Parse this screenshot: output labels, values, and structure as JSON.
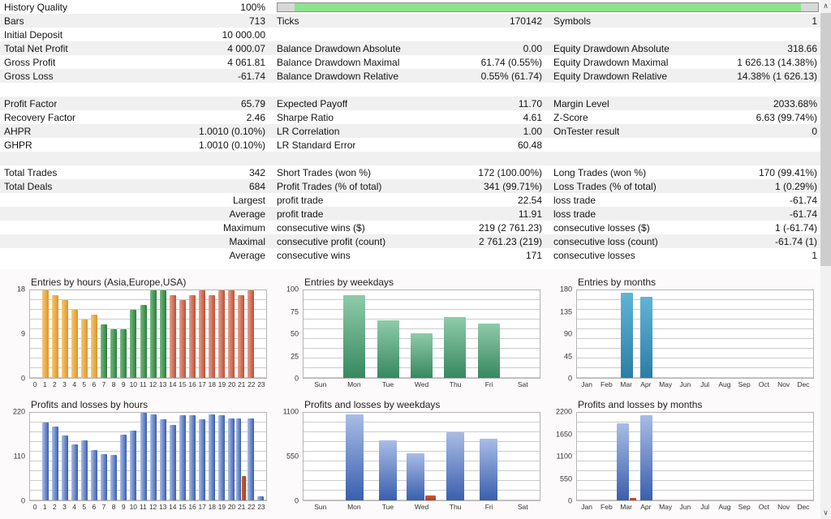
{
  "colors": {
    "stripe": "#f0f0f1",
    "progress_green": "#8de28d",
    "progress_gray": "#d8d8d8",
    "palette": {
      "asia": [
        "#f7c873",
        "#dd9429"
      ],
      "europe": [
        "#74b97e",
        "#2d7f3f"
      ],
      "usa": [
        "#e59d8a",
        "#bd5038"
      ],
      "entries_weekday": [
        "#8fcbaa",
        "#37885f"
      ],
      "entries_month": [
        "#62b4d6",
        "#2a7da6"
      ],
      "profit": [
        "#a9bce6",
        "#3a5fae"
      ],
      "loss": [
        "#cd5a36",
        "#b23b1e"
      ]
    }
  },
  "scrollbar": {
    "up": "∧",
    "down": "∨"
  },
  "stats": {
    "history_quality": {
      "label": "History Quality",
      "value": "100%",
      "fill_left_pct": 3.2,
      "fill_width_pct": 93.6
    },
    "rows": [
      {
        "type": "progress",
        "l": "History Quality",
        "lv": "100%"
      },
      {
        "l": "Bars",
        "lv": "713",
        "m": "Ticks",
        "mv": "170142",
        "r": "Symbols",
        "rv": "1"
      },
      {
        "l": "Initial Deposit",
        "lv": "10 000.00",
        "m": "",
        "mv": "",
        "r": "",
        "rv": ""
      },
      {
        "l": "Total Net Profit",
        "lv": "4 000.07",
        "m": "Balance Drawdown Absolute",
        "mv": "0.00",
        "r": "Equity Drawdown Absolute",
        "rv": "318.66"
      },
      {
        "l": "Gross Profit",
        "lv": "4 061.81",
        "m": "Balance Drawdown Maximal",
        "mv": "61.74 (0.55%)",
        "r": "Equity Drawdown Maximal",
        "rv": "1 626.13 (14.38%)"
      },
      {
        "l": "Gross Loss",
        "lv": "-61.74",
        "m": "Balance Drawdown Relative",
        "mv": "0.55% (61.74)",
        "r": "Equity Drawdown Relative",
        "rv": "14.38% (1 626.13)"
      },
      {
        "type": "spacer"
      },
      {
        "l": "Profit Factor",
        "lv": "65.79",
        "m": "Expected Payoff",
        "mv": "11.70",
        "r": "Margin Level",
        "rv": "2033.68%"
      },
      {
        "l": "Recovery Factor",
        "lv": "2.46",
        "m": "Sharpe Ratio",
        "mv": "4.61",
        "r": "Z-Score",
        "rv": "6.63 (99.74%)"
      },
      {
        "l": "AHPR",
        "lv": "1.0010 (0.10%)",
        "m": "LR Correlation",
        "mv": "1.00",
        "r": "OnTester result",
        "rv": "0"
      },
      {
        "l": "GHPR",
        "lv": "1.0010 (0.10%)",
        "m": "LR Standard Error",
        "mv": "60.48",
        "r": "",
        "rv": ""
      },
      {
        "type": "spacer"
      },
      {
        "l": "Total Trades",
        "lv": "342",
        "m": "Short Trades (won %)",
        "mv": "172 (100.00%)",
        "r": "Long Trades (won %)",
        "rv": "170 (99.41%)"
      },
      {
        "l": "Total Deals",
        "lv": "684",
        "m": "Profit Trades (% of total)",
        "mv": "341 (99.71%)",
        "r": "Loss Trades (% of total)",
        "rv": "1 (0.29%)"
      },
      {
        "l": "",
        "lv": "Largest",
        "m": "profit trade",
        "mv": "22.54",
        "r": "loss trade",
        "rv": "-61.74"
      },
      {
        "l": "",
        "lv": "Average",
        "m": "profit trade",
        "mv": "11.91",
        "r": "loss trade",
        "rv": "-61.74"
      },
      {
        "l": "",
        "lv": "Maximum",
        "m": "consecutive wins ($)",
        "mv": "219 (2 761.23)",
        "r": "consecutive losses ($)",
        "rv": "1 (-61.74)"
      },
      {
        "l": "",
        "lv": "Maximal",
        "m": "consecutive profit (count)",
        "mv": "2 761.23 (219)",
        "r": "consecutive loss (count)",
        "rv": "-61.74 (1)"
      },
      {
        "l": "",
        "lv": "Average",
        "m": "consecutive wins",
        "mv": "171",
        "r": "consecutive losses",
        "rv": "1"
      }
    ]
  },
  "chart_data": [
    {
      "type": "bar",
      "title": "Entries by hours (Asia,Europe,USA)",
      "categories": [
        "0",
        "1",
        "2",
        "3",
        "4",
        "5",
        "6",
        "7",
        "8",
        "9",
        "10",
        "11",
        "12",
        "13",
        "14",
        "15",
        "16",
        "17",
        "18",
        "19",
        "20",
        "21",
        "22",
        "23"
      ],
      "values": [
        0,
        18,
        17,
        16,
        14,
        12,
        13,
        11,
        10,
        10,
        14,
        15,
        18,
        18,
        17,
        16,
        17,
        18,
        17,
        18,
        18,
        17,
        18,
        0
      ],
      "bar_colors": [
        "",
        "asia",
        "asia",
        "asia",
        "asia",
        "asia",
        "asia",
        "europe",
        "europe",
        "europe",
        "europe",
        "europe",
        "europe",
        "europe",
        "usa",
        "usa",
        "usa",
        "usa",
        "usa",
        "usa",
        "usa",
        "usa",
        "usa",
        ""
      ],
      "yticks": [
        0,
        9,
        18
      ],
      "ylim": [
        0,
        18
      ],
      "grid": true,
      "legend_position": "none"
    },
    {
      "type": "bar",
      "title": "Entries by weekdays",
      "categories": [
        "Sun",
        "Mon",
        "Tue",
        "Wed",
        "Thu",
        "Fri",
        "Sat"
      ],
      "values": [
        0,
        94,
        66,
        51,
        69,
        62,
        0
      ],
      "color": "entries_weekday",
      "yticks": [
        0,
        25,
        50,
        75,
        100
      ],
      "ylim": [
        0,
        100
      ],
      "grid": true,
      "legend_position": "none"
    },
    {
      "type": "bar",
      "title": "Entries by months",
      "categories": [
        "Jan",
        "Feb",
        "Mar",
        "Apr",
        "May",
        "Jun",
        "Jul",
        "Aug",
        "Sep",
        "Oct",
        "Nov",
        "Dec"
      ],
      "values": [
        0,
        0,
        175,
        167,
        0,
        0,
        0,
        0,
        0,
        0,
        0,
        0
      ],
      "color": "entries_month",
      "yticks": [
        0,
        45,
        90,
        135,
        180
      ],
      "ylim": [
        0,
        180
      ],
      "grid": true,
      "legend_position": "none"
    },
    {
      "type": "bar",
      "title": "Profits and losses by hours",
      "categories": [
        "0",
        "1",
        "2",
        "3",
        "4",
        "5",
        "6",
        "7",
        "8",
        "9",
        "10",
        "11",
        "12",
        "13",
        "14",
        "15",
        "16",
        "17",
        "18",
        "19",
        "20",
        "21",
        "22",
        "23"
      ],
      "series": [
        {
          "name": "profit",
          "color": "profit",
          "values": [
            0,
            196,
            186,
            163,
            141,
            151,
            127,
            117,
            114,
            165,
            175,
            220,
            215,
            204,
            189,
            213,
            213,
            204,
            215,
            213,
            206,
            205,
            205,
            10
          ]
        },
        {
          "name": "loss",
          "color": "loss",
          "values": [
            0,
            0,
            0,
            0,
            0,
            0,
            0,
            0,
            0,
            0,
            0,
            0,
            0,
            0,
            0,
            0,
            0,
            0,
            0,
            0,
            0,
            61.74,
            0,
            0
          ]
        }
      ],
      "yticks": [
        0,
        110,
        220
      ],
      "ylim": [
        0,
        220
      ],
      "grid": true,
      "legend_position": "none"
    },
    {
      "type": "bar",
      "title": "Profits and losses by weekdays",
      "categories": [
        "Sun",
        "Mon",
        "Tue",
        "Wed",
        "Thu",
        "Fri",
        "Sat"
      ],
      "series": [
        {
          "name": "profit",
          "color": "profit",
          "values": [
            0,
            1080,
            750,
            590,
            855,
            775,
            0
          ]
        },
        {
          "name": "loss",
          "color": "loss",
          "values": [
            0,
            0,
            0,
            61.74,
            0,
            0,
            0
          ]
        }
      ],
      "yticks": [
        0,
        550,
        1100
      ],
      "ylim": [
        0,
        1100
      ],
      "grid": true,
      "legend_position": "none"
    },
    {
      "type": "bar",
      "title": "Profits and losses by months",
      "categories": [
        "Jan",
        "Feb",
        "Mar",
        "Apr",
        "May",
        "Jun",
        "Jul",
        "Aug",
        "Sep",
        "Oct",
        "Nov",
        "Dec"
      ],
      "series": [
        {
          "name": "profit",
          "color": "profit",
          "values": [
            0,
            0,
            1930,
            2132,
            0,
            0,
            0,
            0,
            0,
            0,
            0,
            0
          ]
        },
        {
          "name": "loss",
          "color": "loss",
          "values": [
            0,
            0,
            61.74,
            0,
            0,
            0,
            0,
            0,
            0,
            0,
            0,
            0
          ]
        }
      ],
      "yticks": [
        0,
        550,
        1100,
        1650,
        2200
      ],
      "ylim": [
        0,
        2200
      ],
      "grid": true,
      "legend_position": "none"
    }
  ]
}
